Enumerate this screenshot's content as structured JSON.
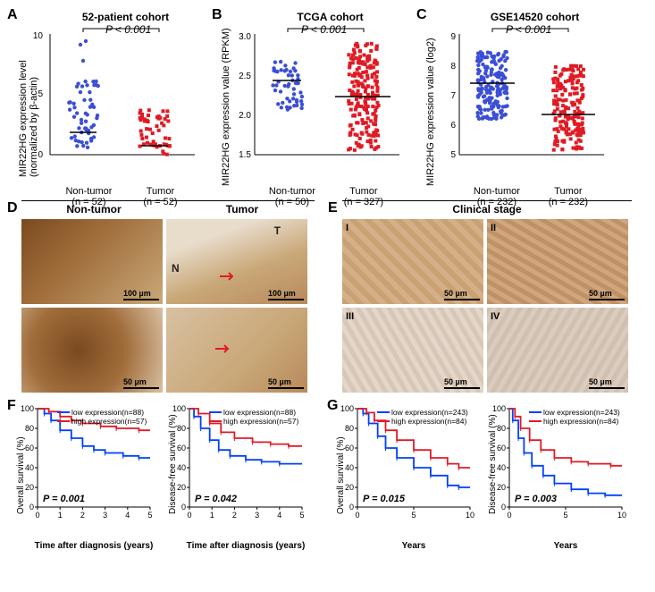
{
  "panelA": {
    "label": "A",
    "title": "52-patient cohort",
    "pvalue": "P < 0.001",
    "ylabel": "MIR22HG expression level\n(normalized by β-actin)",
    "ylim": [
      0,
      10
    ],
    "ytick_step": 5,
    "groups": [
      {
        "name": "Non-tumor",
        "n": "(n = 52)",
        "color": "#3b4fd6"
      },
      {
        "name": "Tumor",
        "n": "(n = 52)",
        "color": "#e01b24"
      }
    ]
  },
  "panelB": {
    "label": "B",
    "title": "TCGA cohort",
    "pvalue": "P < 0.001",
    "ylabel": "MIR22HG expression value (RPKM)",
    "ylim": [
      1.5,
      3.0
    ],
    "ytick_step": 0.5,
    "groups": [
      {
        "name": "Non-tumor",
        "n": "(n = 50)",
        "color": "#3b4fd6"
      },
      {
        "name": "Tumor",
        "n": "(n = 327)",
        "color": "#e01b24"
      }
    ]
  },
  "panelC": {
    "label": "C",
    "title": "GSE14520 cohort",
    "pvalue": "P < 0.001",
    "ylabel": "MIR22HG expression value (log2)",
    "ylim": [
      5,
      9
    ],
    "ytick_step": 1,
    "groups": [
      {
        "name": "Non-tumor",
        "n": "(n = 232)",
        "color": "#3b4fd6"
      },
      {
        "name": "Tumor",
        "n": "(n = 232)",
        "color": "#e01b24"
      }
    ]
  },
  "panelD": {
    "label": "D",
    "headers": [
      "Non-tumor",
      "Tumor"
    ],
    "tumor_marks": {
      "T": "T",
      "N": "N"
    },
    "scales": [
      "100 µm",
      "100 µm",
      "50 µm",
      "50 µm"
    ],
    "colors": {
      "dark": "#8a5a2a",
      "light": "#d9c0a3",
      "pale": "#e8dccb"
    }
  },
  "panelE": {
    "label": "E",
    "header": "Clinical stage",
    "stages": [
      "I",
      "II",
      "III",
      "IV"
    ],
    "scale": "50 µm",
    "colors": {
      "I": "#c9a173",
      "II": "#c09066",
      "III": "#d8c7b8",
      "IV": "#d0c0b0"
    }
  },
  "panelF": {
    "label": "F",
    "charts": [
      {
        "ylabel": "Overall survival (%)",
        "xlabel": "Time after diagnosis (years)",
        "pvalue": "P = 0.001",
        "legend": [
          {
            "text": "low expression(n=88)",
            "color": "#0040ff"
          },
          {
            "text": "high expression(n=57)",
            "color": "#e01b24"
          }
        ],
        "xlim": [
          0,
          5
        ],
        "ylim": [
          0,
          100
        ],
        "ytick_step": 20,
        "xtick_step": 1
      },
      {
        "ylabel": "Disease-free survival (%)",
        "xlabel": "Time after diagnosis (years)",
        "pvalue": "P = 0.042",
        "legend": [
          {
            "text": "low expression(n=88)",
            "color": "#0040ff"
          },
          {
            "text": "high expression(n=57)",
            "color": "#e01b24"
          }
        ],
        "xlim": [
          0,
          5
        ],
        "ylim": [
          0,
          100
        ],
        "ytick_step": 20,
        "xtick_step": 1
      }
    ]
  },
  "panelG": {
    "label": "G",
    "charts": [
      {
        "ylabel": "Overall survival (%)",
        "xlabel": "Years",
        "pvalue": "P = 0.015",
        "legend": [
          {
            "text": "low expression(n=243)",
            "color": "#0040ff"
          },
          {
            "text": "high expression(n=84)",
            "color": "#e01b24"
          }
        ],
        "xlim": [
          0,
          10
        ],
        "ylim": [
          0,
          100
        ],
        "ytick_step": 20,
        "xtick_step": 5
      },
      {
        "ylabel": "Disease-free survival (%)",
        "xlabel": "Years",
        "pvalue": "P = 0.003",
        "legend": [
          {
            "text": "low expression(n=243)",
            "color": "#0040ff"
          },
          {
            "text": "high expression(n=84)",
            "color": "#e01b24"
          }
        ],
        "xlim": [
          0,
          10
        ],
        "ylim": [
          0,
          100
        ],
        "ytick_step": 20,
        "xtick_step": 5
      }
    ]
  }
}
